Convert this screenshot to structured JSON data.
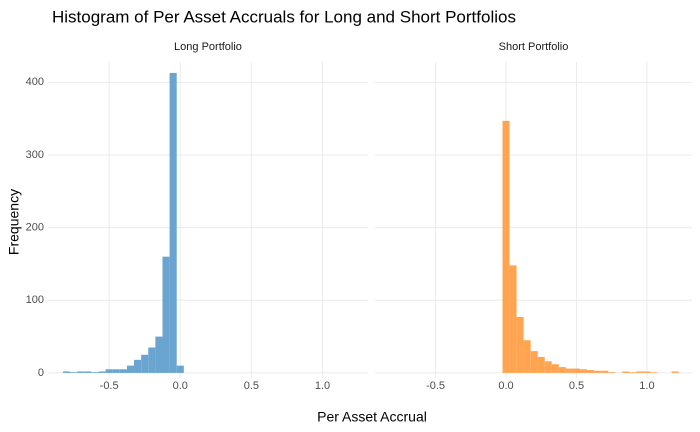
{
  "title": "Histogram of Per Asset Accruals for Long and Short Portfolios",
  "x_label": "Per Asset Accrual",
  "y_label": "Frequency",
  "chart_data": [
    {
      "type": "histogram",
      "title": "Long Portfolio",
      "color": "#69a5d0",
      "bins": [
        -0.825,
        -0.775,
        -0.725,
        -0.675,
        -0.625,
        -0.575,
        -0.525,
        -0.475,
        -0.425,
        -0.375,
        -0.325,
        -0.275,
        -0.225,
        -0.175,
        -0.125,
        -0.075,
        -0.025,
        0.025
      ],
      "counts": [
        2,
        1,
        2,
        2,
        1,
        2,
        5,
        5,
        5,
        10,
        18,
        25,
        35,
        50,
        160,
        413,
        10
      ],
      "xlim": [
        -0.93,
        1.32
      ],
      "ylim": [
        -7,
        428
      ],
      "xticks": [
        -0.5,
        {
          "value": 0,
          "label": "0.0"
        },
        0.5,
        {
          "value": 1,
          "label": "1.0"
        }
      ],
      "yticks": [
        0,
        100,
        200,
        300,
        400
      ],
      "grid": true
    },
    {
      "type": "histogram",
      "title": "Short Portfolio",
      "color": "#ffa552",
      "bins": [
        -0.025,
        0.025,
        0.075,
        0.125,
        0.175,
        0.225,
        0.275,
        0.325,
        0.375,
        0.425,
        0.475,
        0.525,
        0.575,
        0.625,
        0.675,
        0.725,
        0.775,
        0.825,
        0.875,
        0.925,
        0.975,
        1.025,
        1.075,
        1.125,
        1.175,
        1.225
      ],
      "counts": [
        347,
        148,
        77,
        45,
        30,
        22,
        16,
        12,
        8,
        6,
        6,
        5,
        4,
        3,
        3,
        1,
        0,
        2,
        1,
        2,
        2,
        1,
        0,
        0,
        2
      ],
      "xlim": [
        -0.93,
        1.32
      ],
      "ylim": [
        -7,
        428
      ],
      "xticks": [
        -0.5,
        {
          "value": 0,
          "label": "0.0"
        },
        0.5,
        {
          "value": 1,
          "label": "1.0"
        }
      ],
      "yticks": [
        0,
        100,
        200,
        300,
        400
      ],
      "grid": true
    }
  ]
}
